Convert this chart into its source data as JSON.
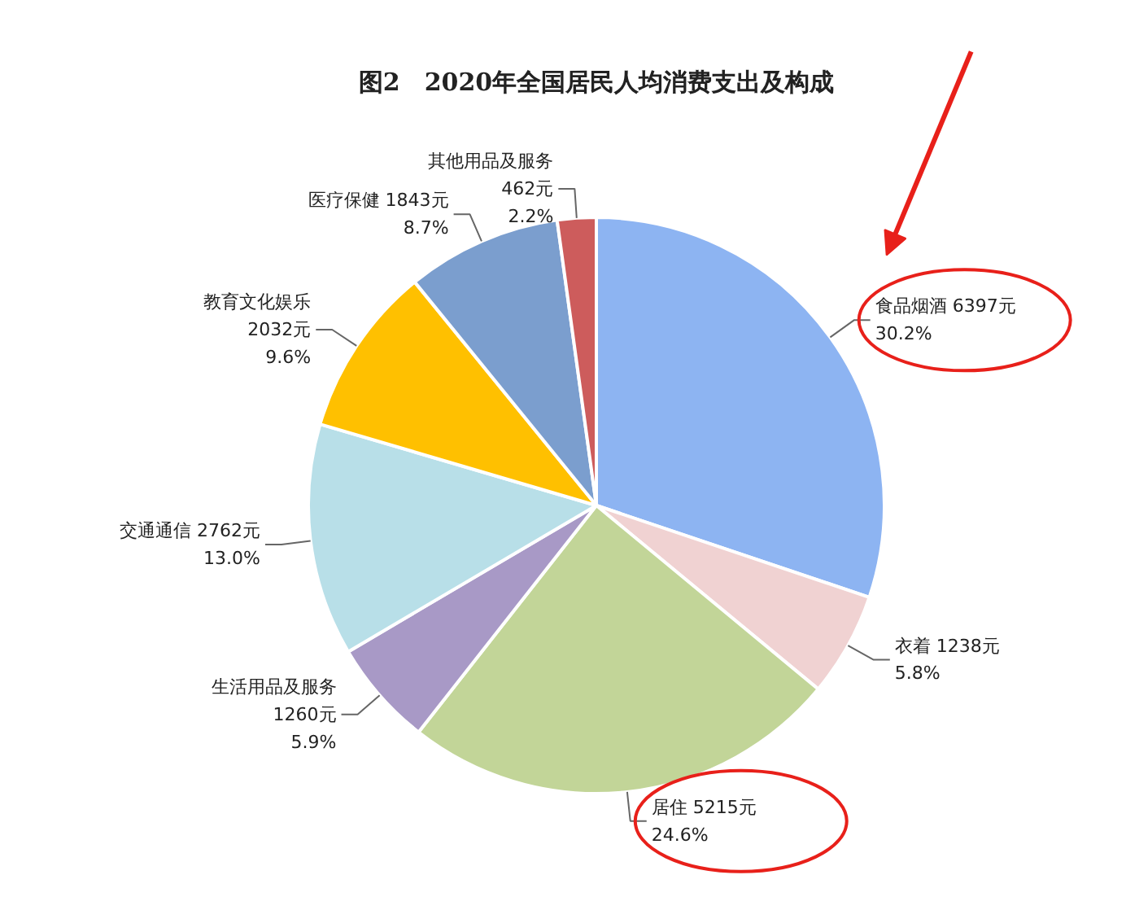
{
  "chart_data": {
    "type": "pie",
    "title": "图2　2020年全国居民人均消费支出及构成",
    "categories": [
      "食品烟酒",
      "衣着",
      "居住",
      "生活用品及服务",
      "交通通信",
      "教育文化娱乐",
      "医疗保健",
      "其他用品及服务"
    ],
    "values": [
      6397,
      1238,
      5215,
      1260,
      2762,
      2032,
      1843,
      462
    ],
    "value_labels": [
      "6397元\n30.2%",
      "1238元\n5.8%",
      "5215元\n24.6%",
      "1260元\n5.9%",
      "2762元\n13.0%",
      "2032元\n9.6%",
      "1843元\n8.7%",
      "462元\n2.2%"
    ],
    "colors": [
      "#8db4f2",
      "#f0d2d2",
      "#c2d598",
      "#a899c6",
      "#b8dfe8",
      "#ffc000",
      "#7b9ece",
      "#cd5c5c"
    ],
    "legend": false
  }
}
